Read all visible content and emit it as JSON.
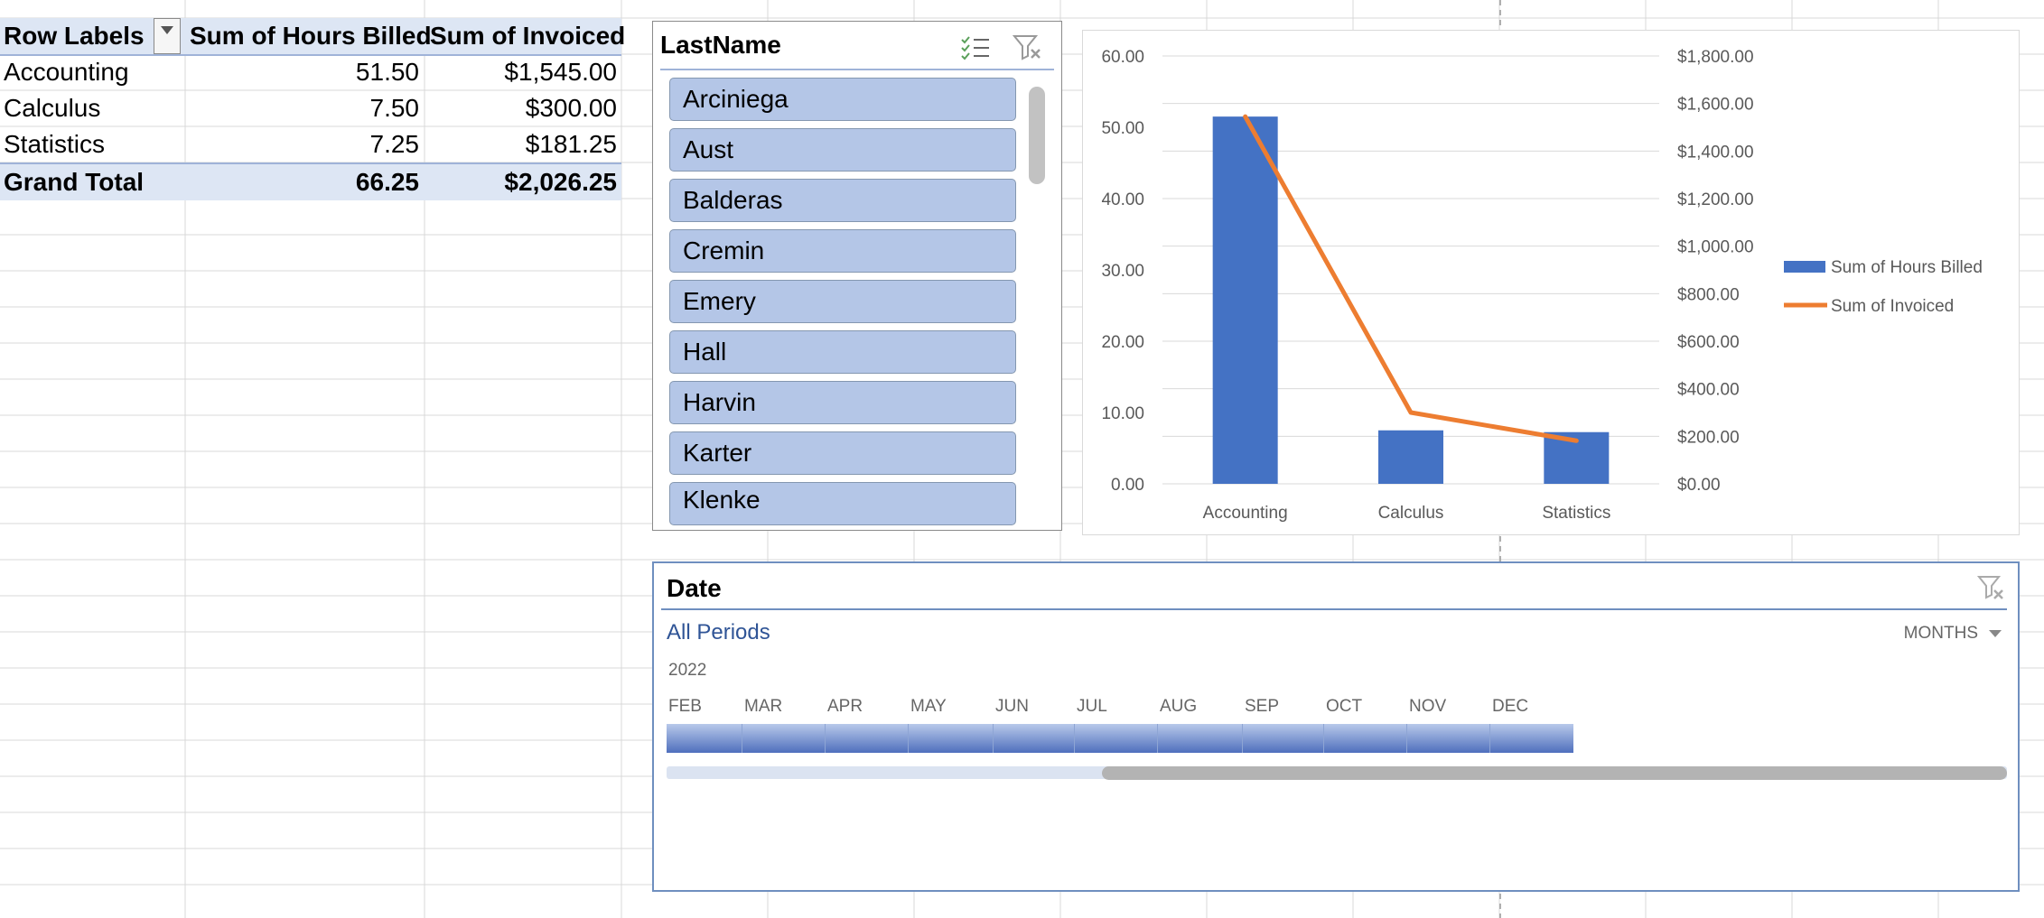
{
  "pivot": {
    "headers": [
      "Row Labels",
      "Sum of Hours Billed",
      "Sum of Invoiced"
    ],
    "rows": [
      {
        "label": "Accounting",
        "hours": "51.50",
        "invoiced": "$1,545.00"
      },
      {
        "label": "Calculus",
        "hours": "7.50",
        "invoiced": "$300.00"
      },
      {
        "label": "Statistics",
        "hours": "7.25",
        "invoiced": "$181.25"
      }
    ],
    "total": {
      "label": "Grand Total",
      "hours": "66.25",
      "invoiced": "$2,026.25"
    }
  },
  "slicer": {
    "title": "LastName",
    "items": [
      "Arciniega",
      "Aust",
      "Balderas",
      "Cremin",
      "Emery",
      "Hall",
      "Harvin",
      "Karter",
      "Klenke"
    ]
  },
  "timeline": {
    "title": "Date",
    "periods_label": "All Periods",
    "level_label": "MONTHS",
    "year": "2022",
    "months": [
      "FEB",
      "MAR",
      "APR",
      "MAY",
      "JUN",
      "JUL",
      "AUG",
      "SEP",
      "OCT",
      "NOV",
      "DEC"
    ]
  },
  "chart_data": {
    "type": "bar",
    "categories": [
      "Accounting",
      "Calculus",
      "Statistics"
    ],
    "series": [
      {
        "name": "Sum of Hours Billed",
        "type": "bar",
        "axis": "left",
        "values": [
          51.5,
          7.5,
          7.25
        ],
        "color": "#4472c4"
      },
      {
        "name": "Sum of Invoiced",
        "type": "line",
        "axis": "right",
        "values": [
          1545,
          300,
          181.25
        ],
        "color": "#ed7d31"
      }
    ],
    "y_left": {
      "ticks": [
        "0.00",
        "10.00",
        "20.00",
        "30.00",
        "40.00",
        "50.00",
        "60.00"
      ],
      "ylim": [
        0,
        60
      ]
    },
    "y_right": {
      "ticks": [
        "$0.00",
        "$200.00",
        "$400.00",
        "$600.00",
        "$800.00",
        "$1,000.00",
        "$1,200.00",
        "$1,400.00",
        "$1,600.00",
        "$1,800.00"
      ],
      "ylim": [
        0,
        1800
      ]
    },
    "legend_position": "right",
    "grid": true
  }
}
